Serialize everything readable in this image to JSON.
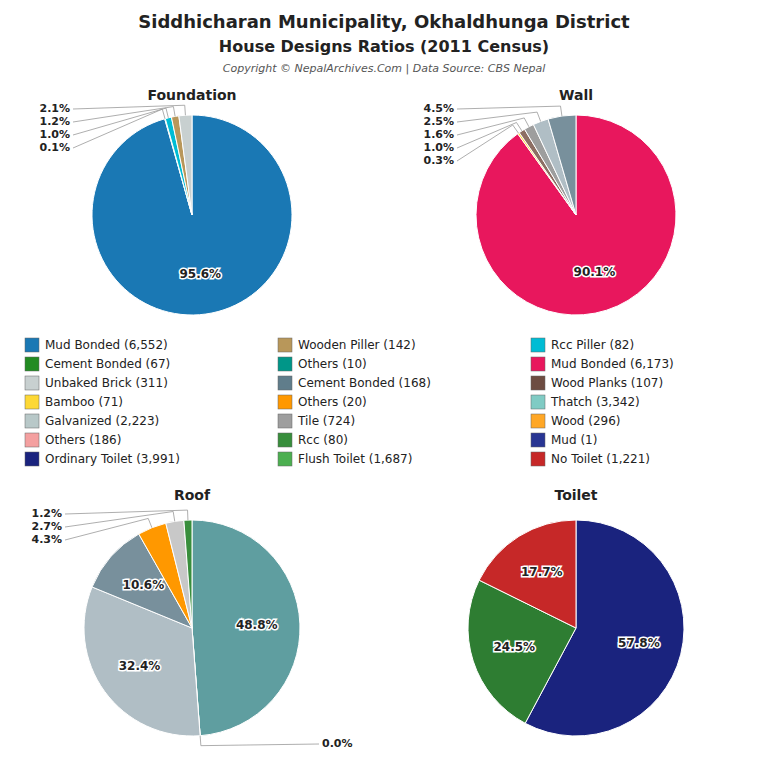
{
  "title": "Siddhicharan Municipality, Okhaldhunga District",
  "subtitle": "House Designs Ratios (2011 Census)",
  "annotations": [
    {
      "text": "Copyright © NepalArchives.Com | Data Source: CBS Nepal"
    }
  ],
  "legend_columns": [
    [
      {
        "label": "Mud Bonded (6,552)",
        "color": "#1a78b4"
      },
      {
        "label": "Cement Bonded (67)",
        "color": "#228B22"
      },
      {
        "label": "Unbaked Brick (311)",
        "color": "#c8d0d0"
      },
      {
        "label": "Bamboo (71)",
        "color": "#fdd835"
      },
      {
        "label": "Galvanized (2,223)",
        "color": "#b8c8c8"
      },
      {
        "label": "Others (186)",
        "color": "#f4a0a0"
      },
      {
        "label": "Ordinary Toilet (3,991)",
        "color": "#1a237e"
      }
    ],
    [
      {
        "label": "Wooden Piller (142)",
        "color": "#b8975a"
      },
      {
        "label": "Others (10)",
        "color": "#009688"
      },
      {
        "label": "Cement Bonded (168)",
        "color": "#607d8b"
      },
      {
        "label": "Others (20)",
        "color": "#ff9800"
      },
      {
        "label": "Tile (724)",
        "color": "#9e9e9e"
      },
      {
        "label": "Rcc (80)",
        "color": "#388e3c"
      },
      {
        "label": "Flush Toilet (1,687)",
        "color": "#4caf50"
      }
    ],
    [
      {
        "label": "Rcc Piller (82)",
        "color": "#00bcd4"
      },
      {
        "label": "Mud Bonded (6,173)",
        "color": "#e8175d"
      },
      {
        "label": "Wood Planks (107)",
        "color": "#6d4c41"
      },
      {
        "label": "Thatch (3,342)",
        "color": "#80cbc4"
      },
      {
        "label": "Wood (296)",
        "color": "#ffa726"
      },
      {
        "label": "Mud (1)",
        "color": "#283593"
      },
      {
        "label": "No Toilet (1,221)",
        "color": "#c62828"
      }
    ]
  ],
  "chart_data": [
    {
      "type": "pie",
      "title": "Foundation",
      "values": [
        95.6,
        0.1,
        1.0,
        1.2,
        2.1
      ],
      "value_labels": [
        "95.6%",
        "0.1%",
        "1.0%",
        "1.2%",
        "2.1%"
      ],
      "colors": [
        "#1a78b4",
        "#228B22",
        "#00bcd4",
        "#b8975a",
        "#c8d0d0"
      ],
      "data_labels": true
    },
    {
      "type": "pie",
      "title": "Wall",
      "values": [
        90.1,
        0.3,
        1.0,
        1.6,
        2.5,
        4.5
      ],
      "value_labels": [
        "90.1%",
        "0.3%",
        "1.0%",
        "1.6%",
        "2.5%",
        "4.5%"
      ],
      "colors": [
        "#e8175d",
        "#fdd835",
        "#8d6e63",
        "#9e9e9e",
        "#b0bec5",
        "#78909c"
      ],
      "data_labels": true
    },
    {
      "type": "pie",
      "title": "Roof",
      "values": [
        48.8,
        0.0,
        32.4,
        10.6,
        4.3,
        2.7,
        1.2
      ],
      "value_labels": [
        "48.8%",
        "0.0%",
        "32.4%",
        "10.6%",
        "4.3%",
        "2.7%",
        "1.2%"
      ],
      "colors": [
        "#5f9ea0",
        "#009688",
        "#b0bec5",
        "#78909c",
        "#ff9800",
        "#c8c8c8",
        "#388e3c"
      ],
      "data_labels": true
    },
    {
      "type": "pie",
      "title": "Toilet",
      "values": [
        57.8,
        24.5,
        17.7
      ],
      "value_labels": [
        "57.8%",
        "24.5%",
        "17.7%"
      ],
      "colors": [
        "#1a237e",
        "#2e7d32",
        "#c62828"
      ],
      "data_labels": true
    }
  ]
}
